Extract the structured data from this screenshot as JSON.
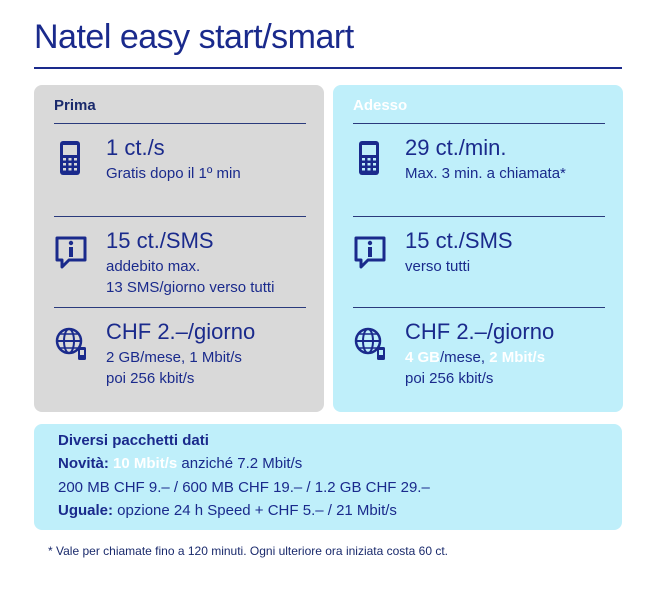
{
  "title": "Natel easy start/smart",
  "left": {
    "header": "Prima",
    "rows": [
      {
        "icon": "mobile-phone-icon",
        "main": "1 ct./s",
        "sub1": "Gratis dopo il 1º min",
        "sub2": ""
      },
      {
        "icon": "sms-info-icon",
        "main": "15 ct./SMS",
        "sub1": "addebito max.",
        "sub2": "13 SMS/giorno verso tutti"
      },
      {
        "icon": "globe-data-icon",
        "main": "CHF 2.–/giorno",
        "sub1": "2 GB/mese, 1 Mbit/s",
        "sub2": "poi 256 kbit/s"
      }
    ]
  },
  "right": {
    "header": "Adesso",
    "rows": [
      {
        "icon": "mobile-phone-icon",
        "main": "29 ct./min.",
        "sub1": "Max. 3 min. a chiamata*",
        "sub2": ""
      },
      {
        "icon": "sms-info-icon",
        "main": "15 ct./SMS",
        "sub1": "verso tutti",
        "sub2": ""
      },
      {
        "icon": "globe-data-icon",
        "main": "CHF 2.–/giorno",
        "sub1_hl1": "4 GB",
        "sub1_mid": "/mese, ",
        "sub1_hl2": "2 Mbit/s",
        "sub2": "poi 256 kbit/s"
      }
    ]
  },
  "bottom": {
    "heading": "Diversi pacchetti dati",
    "novita_label": "Novità:",
    "novita_hl": "10 Mbit/s",
    "novita_rest": " anziché 7.2 Mbit/s",
    "packages": "200 MB CHF 9.– / 600 MB CHF 19.– / 1.2 GB CHF 29.–",
    "uguale_label": "Uguale:",
    "uguale_rest": " opzione 24 h Speed + CHF 5.– / 21 Mbit/s"
  },
  "footnote": "* Vale per chiamate fino a 120 minuti. Ogni ulteriore ora iniziata costa 60 ct.",
  "colors": {
    "navy": "#1a2a8c",
    "gray_panel": "#d9d9d9",
    "cyan_panel": "#bfeffa"
  }
}
